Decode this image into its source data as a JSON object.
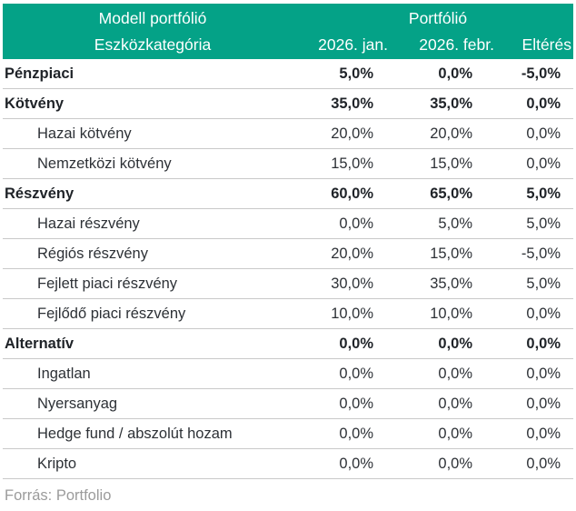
{
  "table": {
    "header": {
      "left_group_title": "Modell portfólió",
      "right_group_title": "Portfólió",
      "category_col_label": "Eszközkategória",
      "value_col_labels": [
        "2026. jan.",
        "2026. febr.",
        "Eltérés"
      ]
    },
    "rows": [
      {
        "label": "Pénzpiaci",
        "section": true,
        "values": [
          "5,0%",
          "0,0%",
          "-5,0%"
        ]
      },
      {
        "label": "Kötvény",
        "section": true,
        "values": [
          "35,0%",
          "35,0%",
          "0,0%"
        ]
      },
      {
        "label": "Hazai kötvény",
        "section": false,
        "values": [
          "20,0%",
          "20,0%",
          "0,0%"
        ]
      },
      {
        "label": "Nemzetközi kötvény",
        "section": false,
        "values": [
          "15,0%",
          "15,0%",
          "0,0%"
        ]
      },
      {
        "label": "Részvény",
        "section": true,
        "values": [
          "60,0%",
          "65,0%",
          "5,0%"
        ]
      },
      {
        "label": "Hazai részvény",
        "section": false,
        "values": [
          "0,0%",
          "5,0%",
          "5,0%"
        ]
      },
      {
        "label": "Régiós részvény",
        "section": false,
        "values": [
          "20,0%",
          "15,0%",
          "-5,0%"
        ]
      },
      {
        "label": "Fejlett piaci részvény",
        "section": false,
        "values": [
          "30,0%",
          "35,0%",
          "5,0%"
        ]
      },
      {
        "label": "Fejlődő piaci részvény",
        "section": false,
        "values": [
          "10,0%",
          "10,0%",
          "0,0%"
        ]
      },
      {
        "label": "Alternatív",
        "section": true,
        "values": [
          "0,0%",
          "0,0%",
          "0,0%"
        ]
      },
      {
        "label": "Ingatlan",
        "section": false,
        "values": [
          "0,0%",
          "0,0%",
          "0,0%"
        ]
      },
      {
        "label": "Nyersanyag",
        "section": false,
        "values": [
          "0,0%",
          "0,0%",
          "0,0%"
        ]
      },
      {
        "label": "Hedge fund / abszolút hozam",
        "section": false,
        "values": [
          "0,0%",
          "0,0%",
          "0,0%"
        ]
      },
      {
        "label": "Kripto",
        "section": false,
        "values": [
          "0,0%",
          "0,0%",
          "0,0%"
        ]
      }
    ],
    "source_note": "Forrás: Portfolio"
  },
  "colors": {
    "header_bg": "#04a287",
    "header_text": "#ffffff",
    "divider": "#c9c9c9",
    "section_text": "#1f2328",
    "row_text": "#2d3136",
    "source_text": "#9b9b9b"
  },
  "chart_data": {
    "type": "table",
    "title": "Modell portfólió / Portfólió",
    "columns": [
      "Eszközkategória",
      "Modell portfólió 2026. jan. (%)",
      "Portfólió 2026. febr. (%)",
      "Eltérés (%)"
    ],
    "section_rows": [
      "Pénzpiaci",
      "Kötvény",
      "Részvény",
      "Alternatív"
    ],
    "rows": [
      [
        "Pénzpiaci",
        5.0,
        0.0,
        -5.0
      ],
      [
        "Kötvény",
        35.0,
        35.0,
        0.0
      ],
      [
        "Hazai kötvény",
        20.0,
        20.0,
        0.0
      ],
      [
        "Nemzetközi kötvény",
        15.0,
        15.0,
        0.0
      ],
      [
        "Részvény",
        60.0,
        65.0,
        5.0
      ],
      [
        "Hazai részvény",
        0.0,
        5.0,
        5.0
      ],
      [
        "Régiós részvény",
        20.0,
        15.0,
        -5.0
      ],
      [
        "Fejlett piaci részvény",
        30.0,
        35.0,
        5.0
      ],
      [
        "Fejlődő piaci részvény",
        10.0,
        10.0,
        0.0
      ],
      [
        "Alternatív",
        0.0,
        0.0,
        0.0
      ],
      [
        "Ingatlan",
        0.0,
        0.0,
        0.0
      ],
      [
        "Nyersanyag",
        0.0,
        0.0,
        0.0
      ],
      [
        "Hedge fund / abszolút hozam",
        0.0,
        0.0,
        0.0
      ],
      [
        "Kripto",
        0.0,
        0.0,
        0.0
      ]
    ],
    "source": "Forrás: Portfolio"
  }
}
